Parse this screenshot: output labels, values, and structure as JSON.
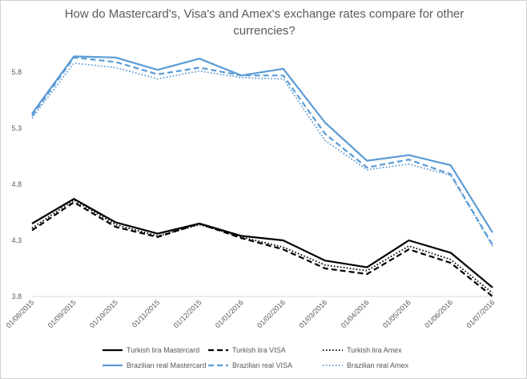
{
  "chart_data": {
    "type": "line",
    "title": "How do Mastercard's, Visa's and Amex's exchange rates compare for other currencies?",
    "xlabel": "",
    "ylabel": "",
    "x": [
      "01/08/2015",
      "01/09/2015",
      "01/10/2015",
      "01/11/2015",
      "01/12/2015",
      "01/01/2016",
      "01/02/2016",
      "01/03/2016",
      "01/04/2016",
      "01/05/2016",
      "01/06/2016",
      "01/07/2016"
    ],
    "yticks": [
      "3.8",
      "4.3",
      "4.8",
      "5.3",
      "5.8"
    ],
    "ylim": [
      3.8,
      6.1
    ],
    "grid": false,
    "legend_position": "bottom",
    "series": [
      {
        "name": "Turkish lira Mastercard",
        "color": "#000000",
        "dash": "solid",
        "values": [
          4.45,
          4.67,
          4.46,
          4.36,
          4.45,
          4.34,
          4.3,
          4.12,
          4.06,
          4.3,
          4.19,
          3.88
        ]
      },
      {
        "name": "Turkish lira VISA",
        "color": "#000000",
        "dash": "dash",
        "values": [
          4.39,
          4.64,
          4.42,
          4.33,
          4.45,
          4.32,
          4.22,
          4.05,
          4.0,
          4.22,
          4.1,
          3.8
        ]
      },
      {
        "name": "Turkish lira Amex",
        "color": "#000000",
        "dash": "dot",
        "values": [
          4.41,
          4.66,
          4.44,
          4.34,
          4.44,
          4.33,
          4.24,
          4.08,
          4.03,
          4.25,
          4.13,
          3.83
        ]
      },
      {
        "name": "Brazilian real Mastercard",
        "color": "#5b9bd5",
        "dash": "solid",
        "values": [
          5.43,
          5.94,
          5.93,
          5.82,
          5.92,
          5.77,
          5.83,
          5.35,
          5.01,
          5.06,
          4.97,
          4.37
        ]
      },
      {
        "name": "Brazilian real VISA",
        "color": "#5b9bd5",
        "dash": "dash",
        "values": [
          5.41,
          5.93,
          5.89,
          5.78,
          5.84,
          5.77,
          5.77,
          5.25,
          4.95,
          5.02,
          4.89,
          4.26
        ]
      },
      {
        "name": "Brazilian real Amex",
        "color": "#5b9bd5",
        "dash": "dot",
        "values": [
          5.39,
          5.88,
          5.84,
          5.74,
          5.81,
          5.75,
          5.74,
          5.19,
          4.93,
          4.98,
          4.88,
          4.25
        ]
      }
    ]
  }
}
